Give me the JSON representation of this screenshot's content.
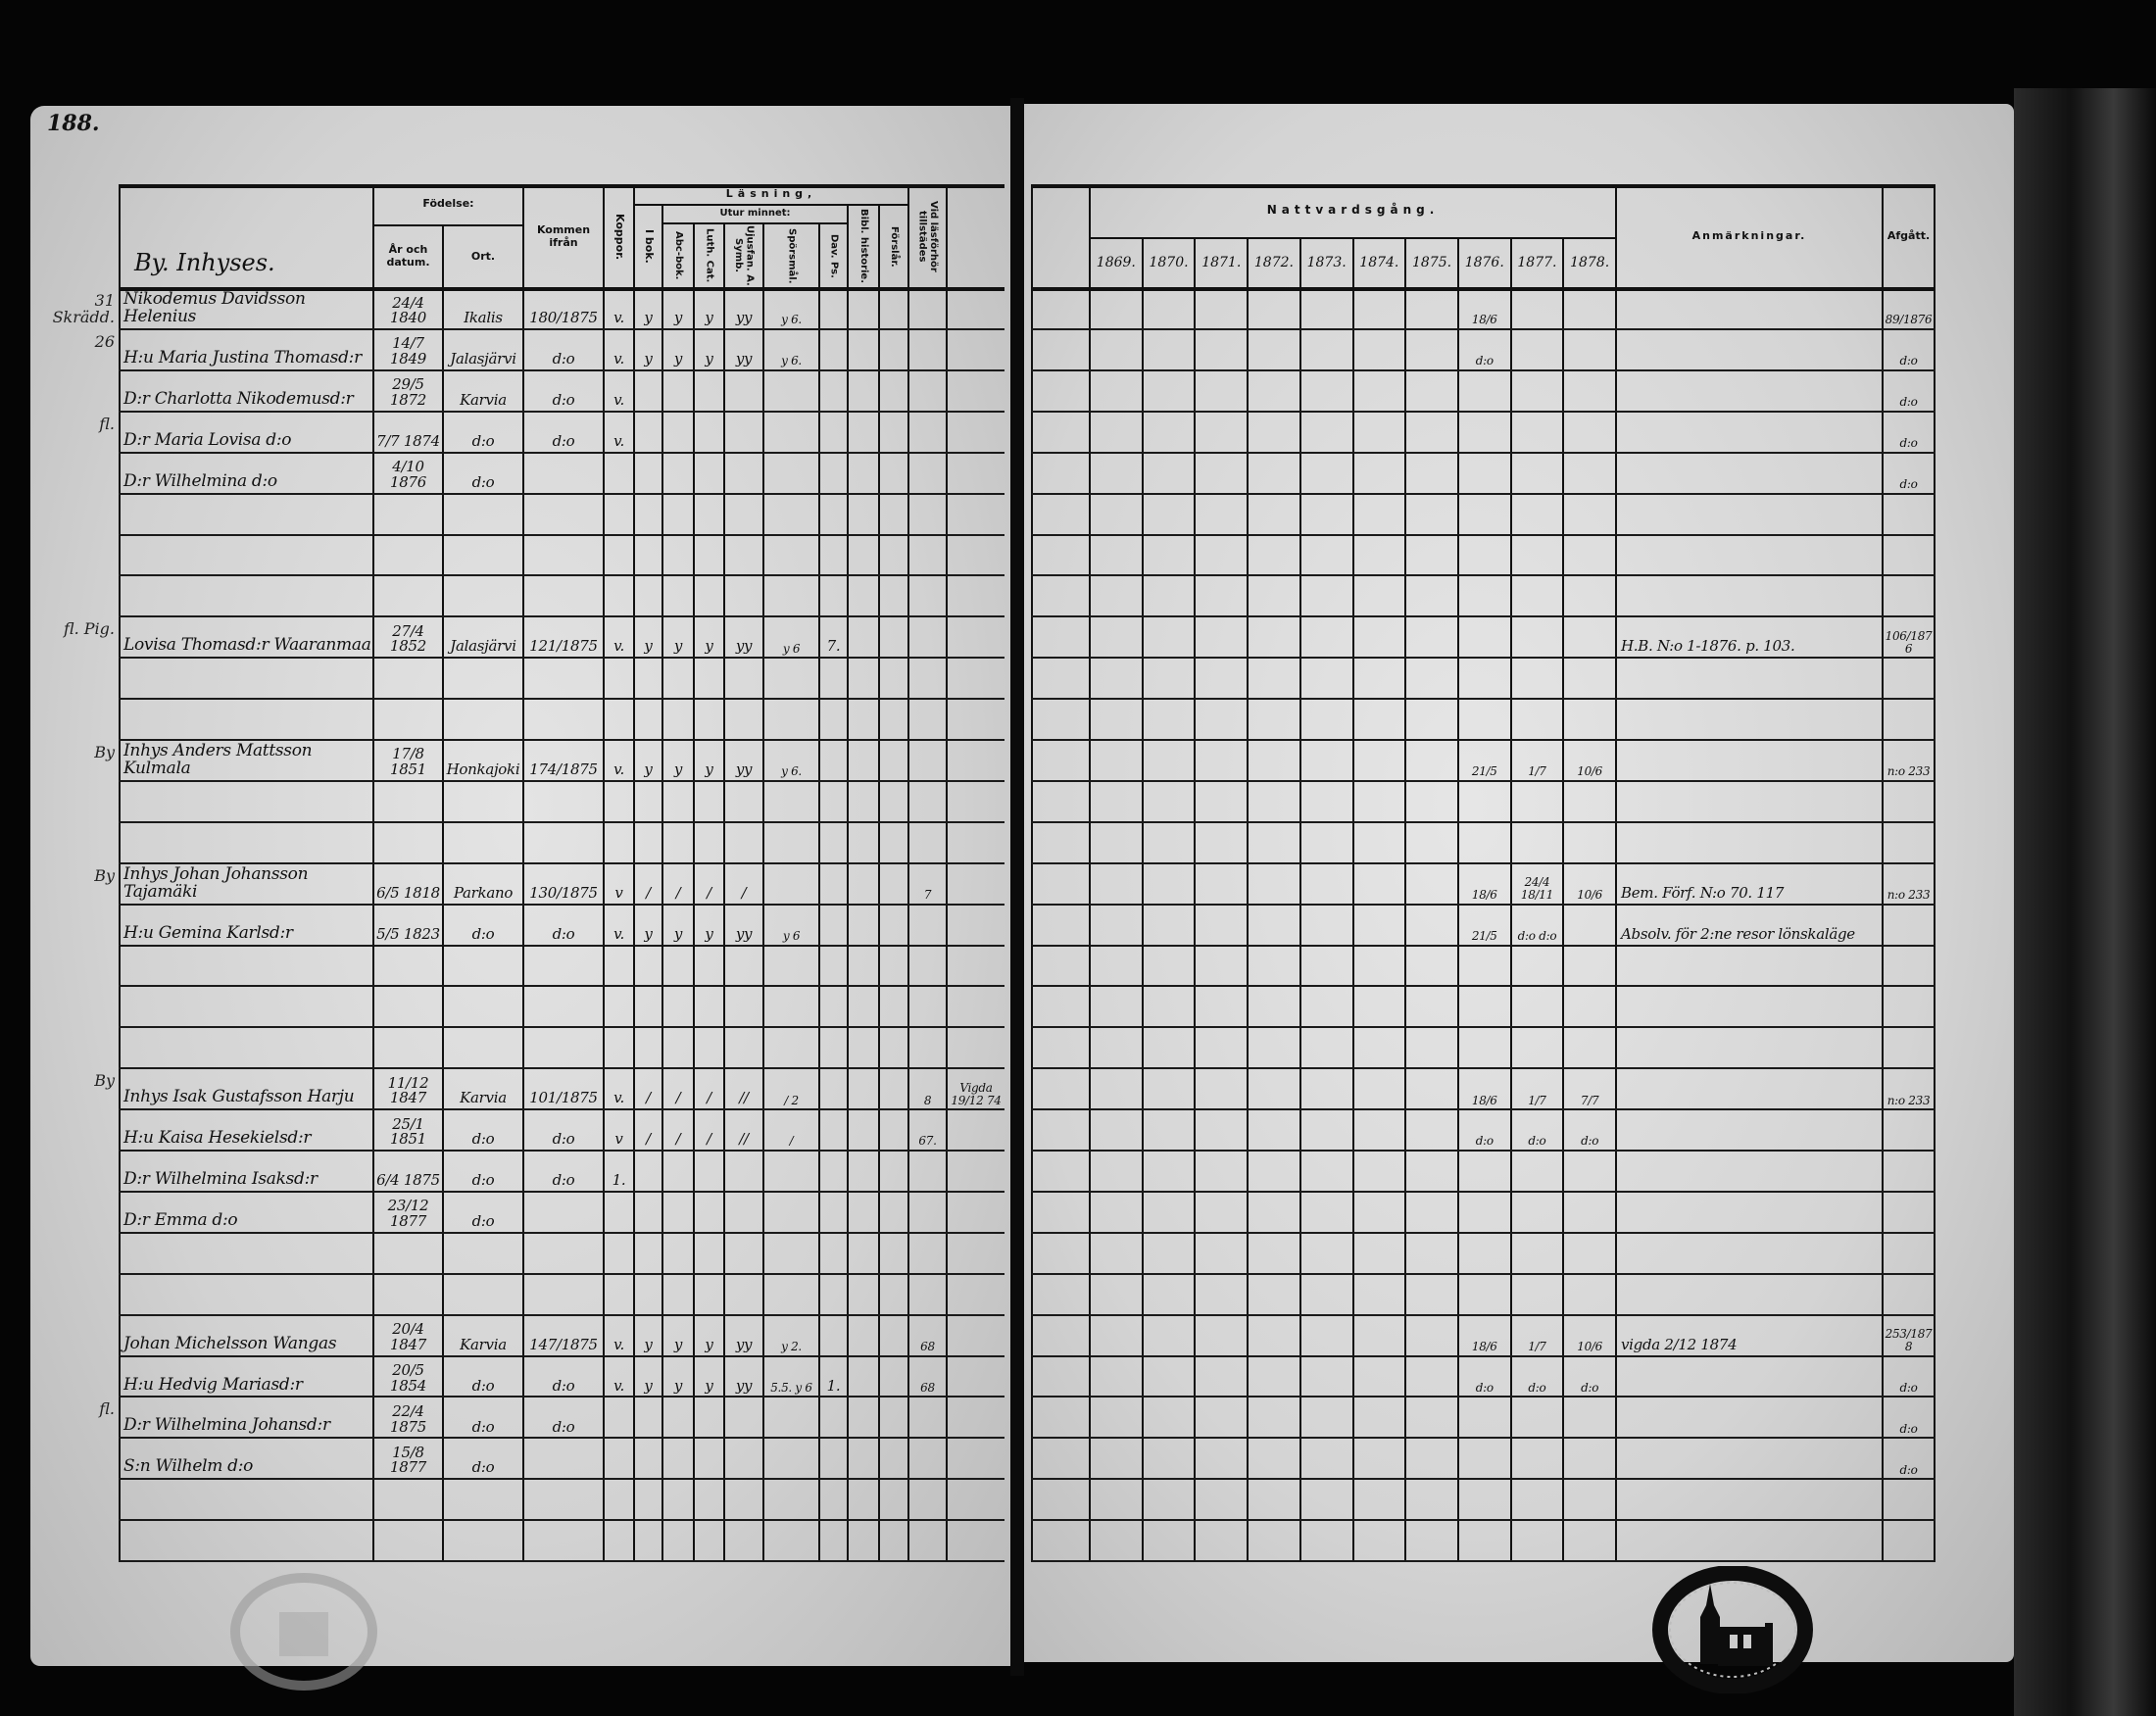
{
  "page_number": "188.",
  "left_header": {
    "section_title": "By. Inhyses.",
    "birth": "Födelse:",
    "birth_year": "År och datum.",
    "birth_place": "Ort.",
    "came_from": "Kommen ifrån",
    "koppor": "Koppor.",
    "reading": "Läsning,",
    "i_bok": "I bok.",
    "by_heart": "Utur minnet:",
    "abc": "Abc-bok.",
    "luth": "Luth. Cat.",
    "ujus": "Ujusfan. A. Symb.",
    "spors": "Spörsmål.",
    "dav": "Dav. Ps.",
    "bibl": "Bibl. historie.",
    "forslar": "Förslår.",
    "vid": "Vid läsförhör tillstädes"
  },
  "right_header": {
    "communion": "Nattvardsgång.",
    "years": [
      "1869.",
      "1870.",
      "1871.",
      "1872.",
      "1873.",
      "1874.",
      "1875.",
      "1876.",
      "1877.",
      "1878."
    ],
    "remarks": "Anmärkningar.",
    "departed": "Afgått."
  },
  "register": {
    "rows": [
      {
        "margin": "31 Skrädd.",
        "name": "Nikodemus Davidsson Helenius",
        "birth_date": "24/4 1840",
        "birth_place": "Ikalis",
        "came_from": "180/1875",
        "koppor": "v.",
        "i_bok": "y",
        "abc": "y",
        "luth": "y",
        "ujus": "yy",
        "spors": "y 6.",
        "communion": {
          "1876.": "18/6"
        },
        "afgatt": "89/1876"
      },
      {
        "margin": "26",
        "name": "H:u Maria Justina Thomasd:r",
        "birth_date": "14/7 1849",
        "birth_place": "Jalasjärvi",
        "came_from": "d:o",
        "koppor": "v.",
        "i_bok": "y",
        "abc": "y",
        "luth": "y",
        "ujus": "yy",
        "spors": "y 6.",
        "communion": {
          "1876.": "d:o"
        },
        "afgatt": "d:o"
      },
      {
        "name": "D:r Charlotta Nikodemusd:r",
        "birth_date": "29/5 1872",
        "birth_place": "Karvia",
        "came_from": "d:o",
        "koppor": "v.",
        "afgatt": "d:o"
      },
      {
        "margin": "fl.",
        "name": "D:r Maria Lovisa d:o",
        "birth_date": "7/7 1874",
        "birth_place": "d:o",
        "came_from": "d:o",
        "koppor": "v.",
        "afgatt": "d:o"
      },
      {
        "name": "D:r Wilhelmina d:o",
        "birth_date": "4/10 1876",
        "birth_place": "d:o",
        "afgatt": "d:o"
      },
      {},
      {},
      {},
      {
        "margin": "fl. Pig.",
        "name": "Lovisa Thomasd:r Waaranmaa",
        "birth_date": "27/4 1852",
        "birth_place": "Jalasjärvi",
        "came_from": "121/1875",
        "koppor": "v.",
        "i_bok": "y",
        "abc": "y",
        "luth": "y",
        "ujus": "yy",
        "spors": "y 6",
        "dav": "7.",
        "anm": "H.B. N:o 1-1876. p. 103.",
        "afgatt": "106/1876"
      },
      {},
      {},
      {
        "margin": "By",
        "name": "Inhys Anders Mattsson Kulmala",
        "birth_date": "17/8 1851",
        "birth_place": "Honkajoki",
        "came_from": "174/1875",
        "koppor": "v.",
        "i_bok": "y",
        "abc": "y",
        "luth": "y",
        "ujus": "yy",
        "spors": "y 6.",
        "communion": {
          "1876.": "21/5",
          "1877.": "1/7",
          "1878.": "10/6"
        },
        "afgatt": "n:o 233"
      },
      {},
      {},
      {
        "margin": "By",
        "name": "Inhys Johan Johansson Tajamäki",
        "birth_date": "6/5 1818",
        "birth_place": "Parkano",
        "came_from": "130/1875",
        "koppor": "v",
        "i_bok": "/",
        "abc": "/",
        "luth": "/",
        "ujus": "/",
        "vid": "7",
        "communion": {
          "1876.": "18/6",
          "1877.": "24/4 18/11",
          "1878.": "10/6"
        },
        "anm": "Bem. Förf. N:o 70. 117",
        "afgatt": "n:o 233"
      },
      {
        "name": "H:u Gemina Karlsd:r",
        "birth_date": "5/5 1823",
        "birth_place": "d:o",
        "came_from": "d:o",
        "koppor": "v.",
        "i_bok": "y",
        "abc": "y",
        "luth": "y",
        "ujus": "yy",
        "spors": "y 6",
        "communion": {
          "1876.": "21/5",
          "1877.": "d:o d:o"
        },
        "anm": "Absolv. för 2:ne resor lönskaläge"
      },
      {},
      {},
      {},
      {
        "margin": "By",
        "name": "Inhys Isak Gustafsson Harju",
        "birth_date": "11/12 1847",
        "birth_place": "Karvia",
        "came_from": "101/1875",
        "koppor": "v.",
        "i_bok": "/",
        "abc": "/",
        "luth": "/",
        "ujus": "//",
        "spors": "/ 2",
        "vid": "8",
        "extra": "Vigda 19/12 74",
        "communion": {
          "1876.": "18/6",
          "1877.": "1/7",
          "1878.": "7/7"
        },
        "afgatt": "n:o 233"
      },
      {
        "name": "H:u Kaisa Hesekielsd:r",
        "birth_date": "25/1 1851",
        "birth_place": "d:o",
        "came_from": "d:o",
        "koppor": "v",
        "i_bok": "/",
        "abc": "/",
        "luth": "/",
        "ujus": "//",
        "spors": "/",
        "vid": "67.",
        "communion": {
          "1876.": "d:o",
          "1877.": "d:o",
          "1878.": "d:o"
        }
      },
      {
        "name": "D:r Wilhelmina Isaksd:r",
        "birth_date": "6/4 1875",
        "birth_place": "d:o",
        "came_from": "d:o",
        "koppor": "1."
      },
      {
        "name": "D:r Emma d:o",
        "birth_date": "23/12 1877",
        "birth_place": "d:o"
      },
      {},
      {},
      {
        "name": "Johan Michelsson Wangas",
        "birth_date": "20/4 1847",
        "birth_place": "Karvia",
        "came_from": "147/1875",
        "koppor": "v.",
        "i_bok": "y",
        "abc": "y",
        "luth": "y",
        "ujus": "yy",
        "spors": "y 2.",
        "vid": "68",
        "communion": {
          "1876.": "18/6",
          "1877.": "1/7",
          "1878.": "10/6"
        },
        "anm": "vigda 2/12 1874",
        "afgatt": "253/1878"
      },
      {
        "name": "H:u Hedvig Mariasd:r",
        "birth_date": "20/5 1854",
        "birth_place": "d:o",
        "came_from": "d:o",
        "koppor": "v.",
        "i_bok": "y",
        "abc": "y",
        "luth": "y",
        "ujus": "yy",
        "spors": "5.5. y 6",
        "dav": "1.",
        "vid": "68",
        "communion": {
          "1876.": "d:o",
          "1877.": "d:o",
          "1878.": "d:o"
        },
        "afgatt": "d:o"
      },
      {
        "margin": "fl.",
        "name": "D:r Wilhelmina Johansd:r",
        "birth_date": "22/4 1875",
        "birth_place": "d:o",
        "came_from": "d:o",
        "afgatt": "d:o"
      },
      {
        "name": "S:n Wilhelm d:o",
        "birth_date": "15/8 1877",
        "birth_place": "d:o",
        "afgatt": "d:o"
      },
      {},
      {}
    ]
  },
  "colors": {
    "paper": "#d8d8d8",
    "ink": "#111111",
    "background": "#050505"
  }
}
